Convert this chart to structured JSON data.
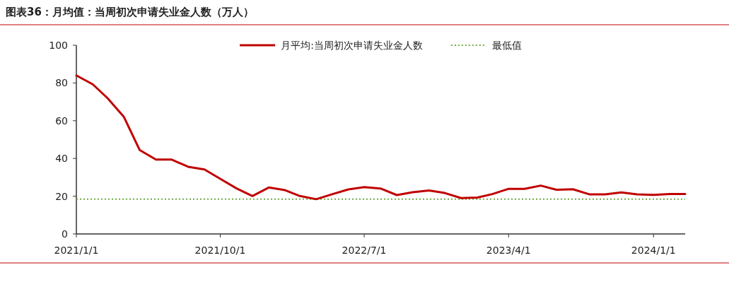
{
  "chart_data": {
    "type": "line",
    "title": "图表36：月均值：当周初次申请失业金人数（万人）",
    "x": [
      "2021-01",
      "2021-02",
      "2021-03",
      "2021-04",
      "2021-05",
      "2021-06",
      "2021-07",
      "2021-08",
      "2021-09",
      "2021-10",
      "2021-11",
      "2021-12",
      "2022-01",
      "2022-02",
      "2022-03",
      "2022-04",
      "2022-05",
      "2022-06",
      "2022-07",
      "2022-08",
      "2022-09",
      "2022-10",
      "2022-11",
      "2022-12",
      "2023-01",
      "2023-02",
      "2023-03",
      "2023-04",
      "2023-05",
      "2023-06",
      "2023-07",
      "2023-08",
      "2023-09",
      "2023-10",
      "2023-11",
      "2023-12",
      "2024-01",
      "2024-02",
      "2024-03"
    ],
    "series": [
      {
        "name": "月平均:当周初次申请失业金人数",
        "color": "#c00000",
        "values": [
          84.0,
          79.3,
          72.0,
          62.1,
          44.5,
          39.4,
          39.4,
          35.6,
          34.2,
          29.2,
          24.1,
          20.1,
          24.6,
          23.2,
          20.1,
          18.4,
          21.0,
          23.6,
          24.8,
          24.1,
          20.6,
          22.1,
          23.0,
          21.7,
          19.0,
          19.3,
          21.1,
          23.9,
          23.9,
          25.6,
          23.4,
          23.7,
          21.0,
          21.0,
          22.0,
          21.0,
          20.7,
          21.2,
          21.2
        ]
      }
    ],
    "ref_lines": [
      {
        "axis": "y",
        "value": 18.4,
        "label": "最低值",
        "color": "#70ad47",
        "line_style": "dotted"
      }
    ],
    "xlim": [
      "2021-01-01",
      "2024-03-01"
    ],
    "xticks": [
      {
        "value": "2021-01-01",
        "label": "2021/1/1"
      },
      {
        "value": "2021-10-01",
        "label": "2021/10/1"
      },
      {
        "value": "2022-07-01",
        "label": "2022/7/1"
      },
      {
        "value": "2023-04-01",
        "label": "2023/4/1"
      },
      {
        "value": "2024-01-01",
        "label": "2024/1/1"
      }
    ],
    "ylim": [
      0,
      100
    ],
    "yticks": [
      0,
      20,
      40,
      60,
      80,
      100
    ],
    "grid": false,
    "legend": "top",
    "line_style": "solid",
    "marker": "none"
  }
}
